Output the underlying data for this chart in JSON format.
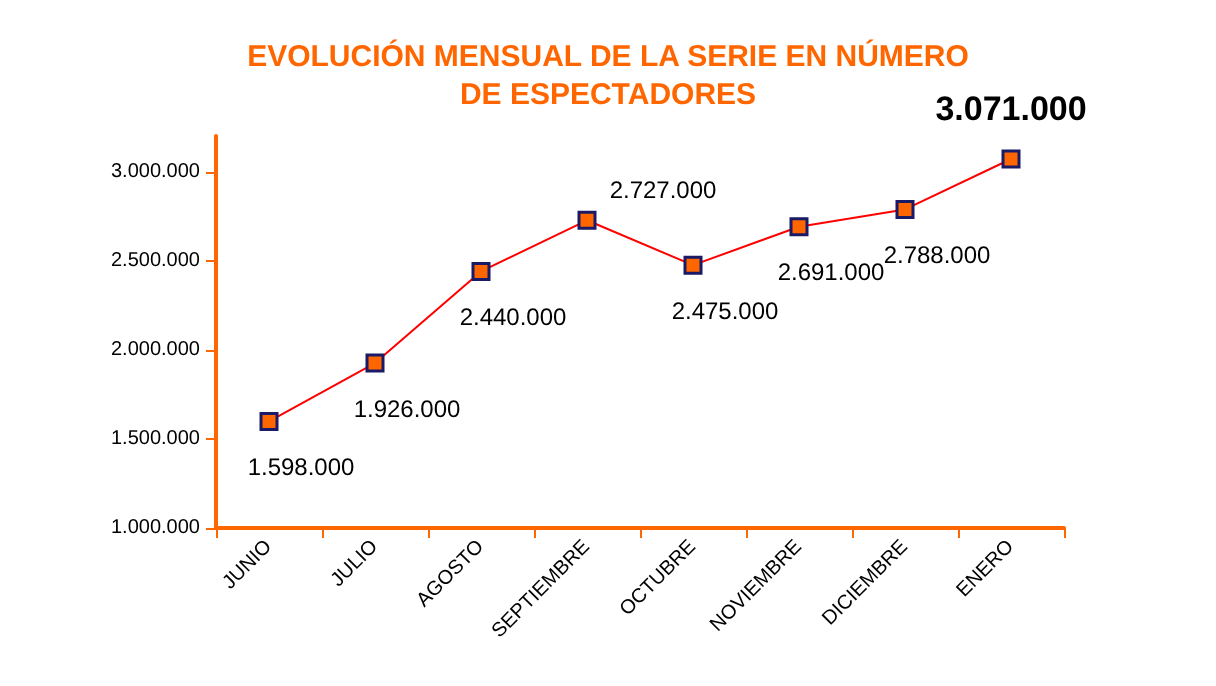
{
  "chart_data": {
    "type": "line",
    "title": "EVOLUCIÓN MENSUAL DE LA SERIE EN NÚMERO\nDE ESPECTADORES",
    "categories": [
      "JUNIO",
      "JULIO",
      "AGOSTO",
      "SEPTIEMBRE",
      "OCTUBRE",
      "NOVIEMBRE",
      "DICIEMBRE",
      "ENERO"
    ],
    "series": [
      {
        "color": "#ff0000",
        "values": [
          1598000,
          1926000,
          2440000,
          2727000,
          2475000,
          2691000,
          2788000,
          3071000
        ],
        "value_labels": [
          "1.598.000",
          "1.926.000",
          "2.440.000",
          "2.727.000",
          "2.475.000",
          "2.691.000",
          "2.788.000",
          "3.071.000"
        ]
      }
    ],
    "ylim": [
      1000000,
      3200000
    ],
    "yticks": [
      {
        "value": 1000000,
        "label": "1.000.000"
      },
      {
        "value": 1500000,
        "label": "1.500.000"
      },
      {
        "value": 2000000,
        "label": "2.000.000"
      },
      {
        "value": 2500000,
        "label": "2.500.000"
      },
      {
        "value": 3000000,
        "label": "3.000.000"
      }
    ],
    "marker": "square"
  }
}
